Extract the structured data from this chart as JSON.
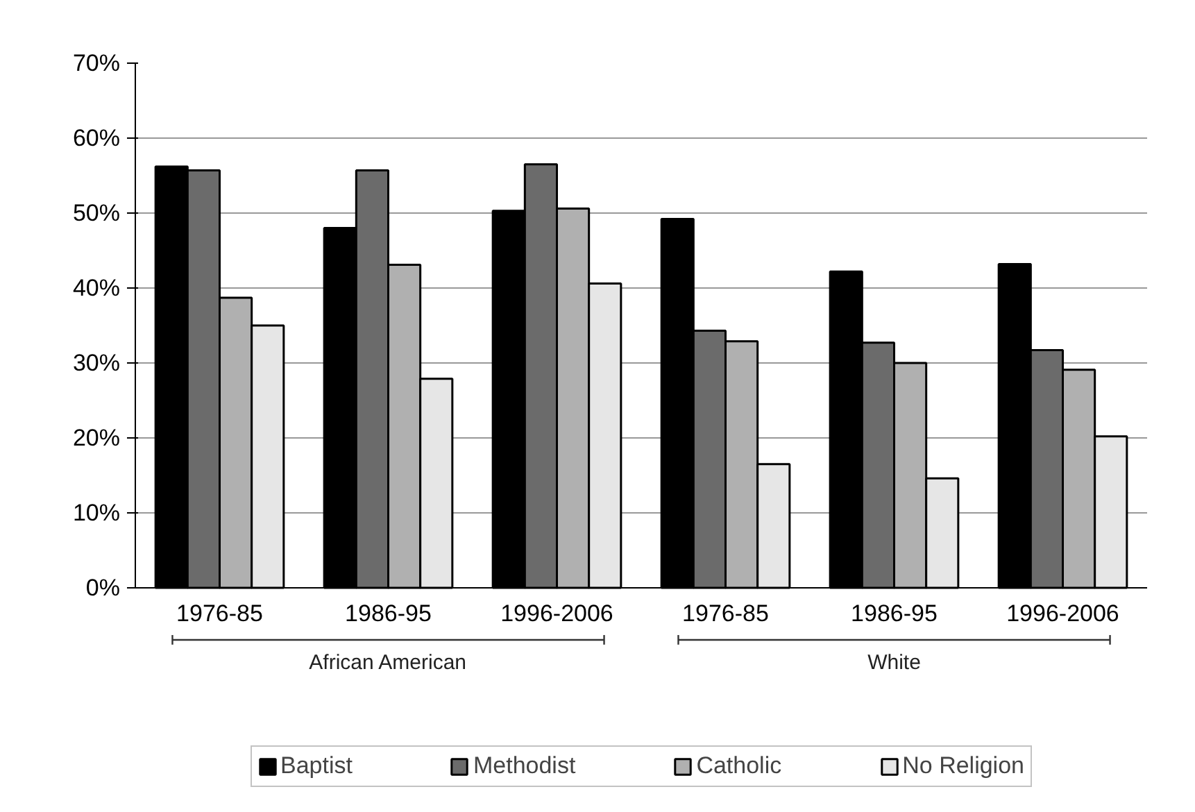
{
  "chart_data": {
    "type": "bar",
    "categories": [
      "1976-85",
      "1986-95",
      "1996-2006",
      "1976-85",
      "1986-95",
      "1996-2006"
    ],
    "series": [
      {
        "name": "Baptist",
        "color": "#000000",
        "values": [
          56.2,
          48.0,
          50.3,
          49.2,
          42.2,
          43.2
        ]
      },
      {
        "name": "Methodist",
        "color": "#6b6b6b",
        "values": [
          55.7,
          55.7,
          56.5,
          34.3,
          32.7,
          31.7
        ]
      },
      {
        "name": "Catholic",
        "color": "#b0b0b0",
        "values": [
          38.7,
          43.1,
          50.6,
          32.9,
          30.0,
          29.1
        ]
      },
      {
        "name": "No Religion",
        "color": "#e6e6e6",
        "values": [
          35.0,
          27.9,
          40.6,
          16.5,
          14.6,
          20.2
        ]
      }
    ],
    "ylim": [
      0,
      70
    ],
    "yticks": [
      {
        "value": 0,
        "label": "0%"
      },
      {
        "value": 10,
        "label": "10%"
      },
      {
        "value": 20,
        "label": "20%"
      },
      {
        "value": 30,
        "label": "30%"
      },
      {
        "value": 40,
        "label": "40%"
      },
      {
        "value": 50,
        "label": "50%"
      },
      {
        "value": 60,
        "label": "60%"
      },
      {
        "value": 70,
        "label": "70%"
      }
    ],
    "grid": "y",
    "legend": "bottom",
    "annotations": [
      "African American",
      "White"
    ]
  }
}
